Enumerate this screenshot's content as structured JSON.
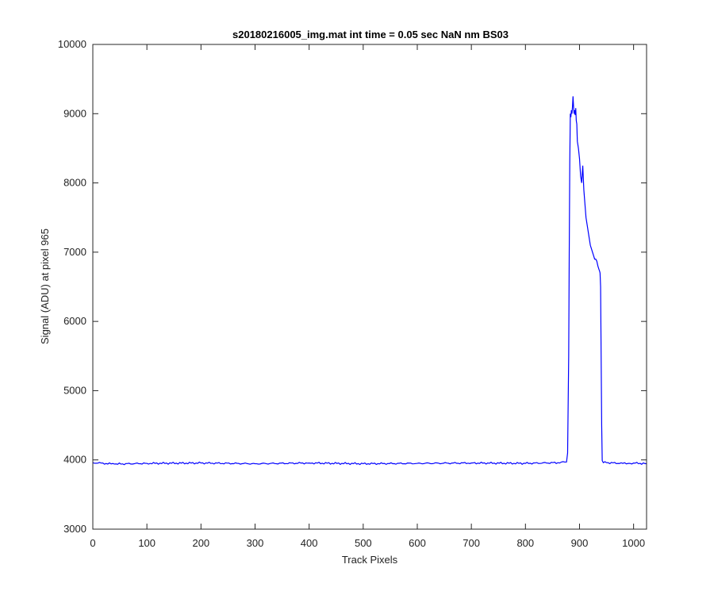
{
  "chart_data": {
    "type": "line",
    "title": "s20180216005_img.mat int time = 0.05 sec  NaN nm BS03",
    "xlabel": "Track Pixels",
    "ylabel": "Signal (ADU) at pixel 965",
    "xlim": [
      0,
      1024
    ],
    "ylim": [
      3000,
      10000
    ],
    "xticks": [
      0,
      100,
      200,
      300,
      400,
      500,
      600,
      700,
      800,
      900,
      1000
    ],
    "yticks": [
      3000,
      4000,
      5000,
      6000,
      7000,
      8000,
      9000,
      10000
    ],
    "grid": false,
    "series": [
      {
        "color": "#0000ff",
        "x": [
          0,
          40,
          100,
          200,
          300,
          400,
          500,
          600,
          700,
          800,
          860,
          876,
          878,
          880,
          881,
          882,
          883,
          884,
          885,
          886,
          887,
          888,
          889,
          890,
          891,
          892,
          893,
          894,
          895,
          896,
          898,
          900,
          902,
          904,
          906,
          908,
          910,
          912,
          914,
          916,
          918,
          920,
          922,
          924,
          926,
          928,
          930,
          932,
          934,
          936,
          937,
          938,
          939,
          940,
          941,
          942,
          944,
          950,
          980,
          1000,
          1024
        ],
        "y": [
          3960,
          3940,
          3950,
          3955,
          3945,
          3955,
          3945,
          3950,
          3955,
          3950,
          3960,
          3970,
          4100,
          5500,
          7000,
          8300,
          9000,
          8950,
          9050,
          9000,
          9100,
          9250,
          9100,
          9000,
          9050,
          8980,
          9080,
          8900,
          8850,
          8600,
          8500,
          8350,
          8100,
          8000,
          8250,
          7900,
          7700,
          7500,
          7400,
          7300,
          7200,
          7100,
          7050,
          7000,
          6950,
          6900,
          6900,
          6870,
          6800,
          6750,
          6730,
          6700,
          6500,
          5500,
          4500,
          3990,
          3960,
          3960,
          3950,
          3955,
          3945
        ]
      }
    ]
  }
}
